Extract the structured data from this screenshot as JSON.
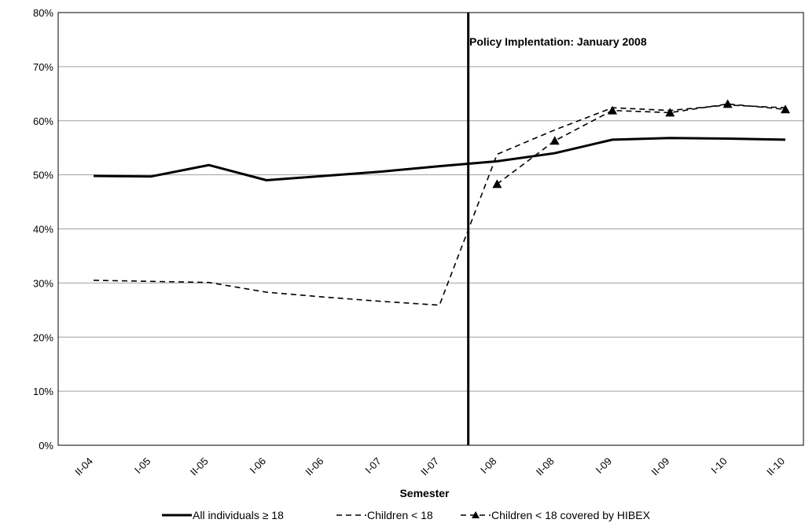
{
  "chart_data": {
    "type": "line",
    "xlabel": "Semester",
    "categories": [
      "II-04",
      "I-05",
      "II-05",
      "I-06",
      "II-06",
      "I-07",
      "II-07",
      "I-08",
      "II-08",
      "I-09",
      "II-09",
      "I-10",
      "II-10"
    ],
    "yticks": [
      "0%",
      "10%",
      "20%",
      "30%",
      "40%",
      "50%",
      "60%",
      "70%",
      "80%"
    ],
    "ylim": [
      0,
      80
    ],
    "grid": "horizontal",
    "legend_position": "bottom",
    "series": [
      {
        "name": "All individuals ≥ 18",
        "style": "solid",
        "values": [
          49.8,
          49.7,
          51.8,
          49.0,
          49.8,
          50.6,
          51.6,
          52.5,
          54.0,
          56.5,
          56.8,
          56.7,
          56.5
        ]
      },
      {
        "name": "Children < 18",
        "style": "dashed",
        "values": [
          30.5,
          30.3,
          30.1,
          28.3,
          27.4,
          26.6,
          25.9,
          53.8,
          58.3,
          62.4,
          61.9,
          62.9,
          62.4
        ]
      },
      {
        "name": "Children < 18 covered by HIBEX",
        "style": "dashed-triangle",
        "values": [
          null,
          null,
          null,
          null,
          null,
          null,
          null,
          48.3,
          56.3,
          61.9,
          61.5,
          63.1,
          62.1
        ]
      }
    ],
    "annotations": [
      {
        "text": "Policy Implentation: January 2008",
        "x_between": [
          "II-07",
          "I-08"
        ]
      }
    ],
    "colors": {
      "line": "#000000",
      "grid": "#a0a0a0"
    }
  }
}
